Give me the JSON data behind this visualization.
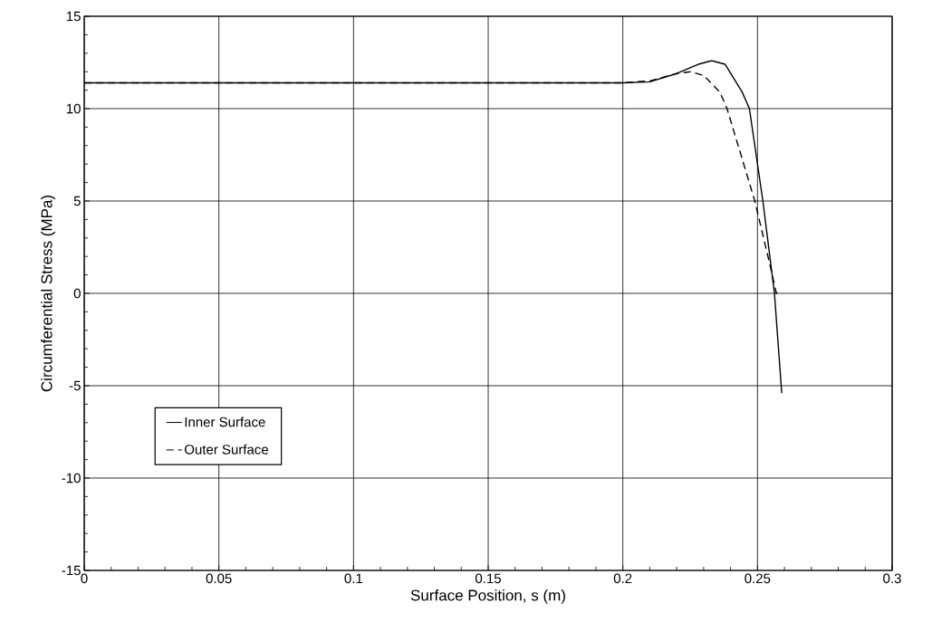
{
  "chart_data": {
    "type": "line",
    "xlabel": "Surface Position, s (m)",
    "ylabel": "Circumferential Stress (MPa)",
    "xlim": [
      0,
      0.3
    ],
    "ylim": [
      -15,
      15
    ],
    "xticks": [
      0,
      0.05,
      0.1,
      0.15,
      0.2,
      0.25,
      0.3
    ],
    "yticks": [
      -15,
      -10,
      -5,
      0,
      5,
      10,
      15
    ],
    "grid": true,
    "legend": "bottom left",
    "marker": "none",
    "series": [
      {
        "name": "Inner Surface",
        "color": "#000000",
        "line_style": "solid",
        "x": [
          0,
          0.05,
          0.1,
          0.15,
          0.2,
          0.21,
          0.22,
          0.228,
          0.233,
          0.238,
          0.2443,
          0.247,
          0.252,
          0.2563,
          0.259
        ],
        "values": [
          11.4,
          11.4,
          11.4,
          11.4,
          11.4,
          11.45,
          11.9,
          12.4,
          12.6,
          12.4,
          10.9,
          10,
          5,
          0,
          -5.4
        ]
      },
      {
        "name": "Outer Surface",
        "color": "#000000",
        "line_style": "dashed",
        "x": [
          0,
          0.05,
          0.1,
          0.15,
          0.2,
          0.21,
          0.22,
          0.225,
          0.23,
          0.236,
          0.2387,
          0.249,
          0.2547,
          0.257,
          0.2585
        ],
        "values": [
          11.4,
          11.4,
          11.4,
          11.4,
          11.4,
          11.5,
          11.9,
          12.0,
          11.8,
          10.9,
          10,
          5,
          1.5,
          0,
          0.2
        ]
      }
    ]
  }
}
